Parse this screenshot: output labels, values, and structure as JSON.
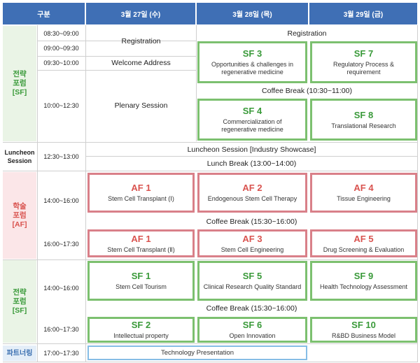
{
  "header": {
    "category": "구분",
    "day1": "3월 27일 (수)",
    "day2": "3월 28일 (목)",
    "day3": "3월 29일 (금)"
  },
  "categories": {
    "sf_top": "전략\n포럼\n[SF]",
    "luncheon": "Luncheon\nSession",
    "af": "학술\n포럼\n[AF]",
    "sf_bottom": "전략\n포럼\n[SF]",
    "partnering": "파트너링"
  },
  "times": [
    "08:30~09:00",
    "09:00~09:30",
    "09:30~10:00",
    "10:00~12:30",
    "12:30~13:00",
    "14:00~16:00",
    "16:00~17:30",
    "14:00~16:00",
    "16:00~17:30",
    "17:00~17:30"
  ],
  "day1": {
    "registration": "Registration",
    "welcome": "Welcome Address",
    "plenary": "Plenary Session"
  },
  "days23": {
    "registration": "Registration",
    "coffee_morning": "Coffee Break (10:30~11:00)",
    "luncheon": "Luncheon Session [Industry Showcase]",
    "lunch_break": "Lunch Break (13:00~14:00)",
    "coffee_af": "Coffee Break (15:30~16:00)",
    "coffee_sf": "Coffee Break (15:30~16:00)"
  },
  "sessions": {
    "sf3": {
      "code": "SF 3",
      "title": "Opportunities & challenges  in\nregenerative medicine"
    },
    "sf7": {
      "code": "SF 7",
      "title": "Regulatory Process &\nrequirement"
    },
    "sf4": {
      "code": "SF 4",
      "title": "Commercialization of\nregenerative medicine"
    },
    "sf8": {
      "code": "SF 8",
      "title": "Translational Research"
    },
    "af1a": {
      "code": "AF 1",
      "title": "Stem Cell Transplant (Ⅰ)"
    },
    "af2": {
      "code": "AF 2",
      "title": "Endogenous Stem Cell Therapy"
    },
    "af4": {
      "code": "AF 4",
      "title": "Tissue Engineering"
    },
    "af1b": {
      "code": "AF 1",
      "title": "Stem Cell Transplant (Ⅱ)"
    },
    "af3": {
      "code": "AF 3",
      "title": "Stem Cell Engineering"
    },
    "af5": {
      "code": "AF 5",
      "title": "Drug Screening & Evaluation"
    },
    "sf1": {
      "code": "SF 1",
      "title": "Stem Cell Tourism"
    },
    "sf5": {
      "code": "SF 5",
      "title": "Clinical Research Quality Standard"
    },
    "sf9": {
      "code": "SF 9",
      "title": "Health Technology Assessment"
    },
    "sf2": {
      "code": "SF 2",
      "title": "Intellectual property"
    },
    "sf6": {
      "code": "SF 6",
      "title": "Open Innovation"
    },
    "sf10": {
      "code": "SF 10",
      "title": "R&BD Business Model"
    }
  },
  "partnering": {
    "tech_presentation": "Technology Presentation"
  },
  "colors": {
    "header": "#3f6fb5",
    "sf_border": "#7cc06f",
    "af_border": "#d98089",
    "tp_border": "#86bde6"
  }
}
